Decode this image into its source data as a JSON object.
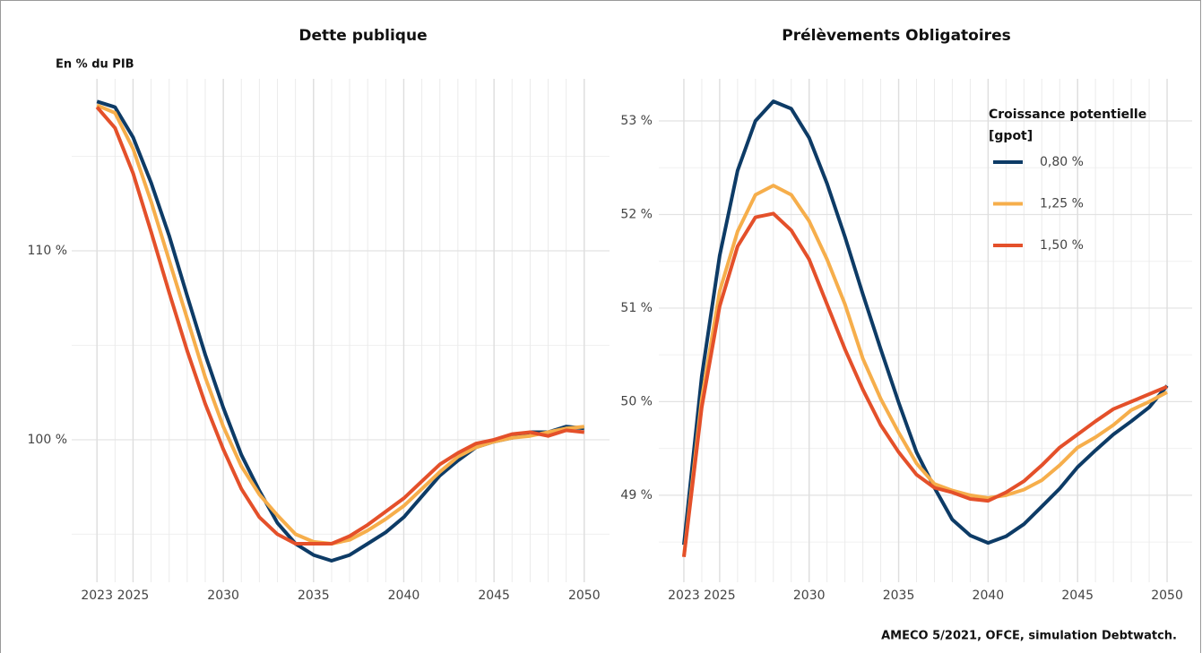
{
  "chart_data": [
    {
      "type": "line",
      "title": "Dette publique",
      "subtitle": "En % du PIB",
      "x": [
        2023,
        2024,
        2025,
        2026,
        2027,
        2028,
        2029,
        2030,
        2031,
        2032,
        2033,
        2034,
        2035,
        2036,
        2037,
        2038,
        2039,
        2040,
        2041,
        2042,
        2043,
        2044,
        2045,
        2046,
        2047,
        2048,
        2049,
        2050
      ],
      "xlim": [
        2021.6,
        2051.4
      ],
      "xticks": [
        2023,
        2025,
        2030,
        2035,
        2040,
        2045,
        2050
      ],
      "ylim": [
        92.46,
        119.1
      ],
      "yticks": [
        {
          "value": 100,
          "label": "100 %"
        },
        {
          "value": 110,
          "label": "110 %"
        }
      ],
      "yminor": [
        95,
        105,
        115
      ],
      "grid": true,
      "legend": false,
      "series": [
        {
          "color": "#0d3b66",
          "values": [
            117.9,
            117.6,
            116.0,
            113.6,
            110.8,
            107.6,
            104.5,
            101.7,
            99.2,
            97.3,
            95.6,
            94.5,
            93.9,
            93.6,
            93.9,
            94.5,
            95.1,
            95.9,
            97.0,
            98.1,
            98.9,
            99.6,
            99.9,
            100.1,
            100.4,
            100.4,
            100.7,
            100.6
          ]
        },
        {
          "color": "#f6ae4b",
          "values": [
            117.7,
            117.3,
            115.4,
            112.6,
            109.5,
            106.4,
            103.3,
            100.7,
            98.6,
            97.1,
            96.0,
            95.0,
            94.6,
            94.5,
            94.7,
            95.2,
            95.8,
            96.5,
            97.4,
            98.3,
            99.1,
            99.6,
            99.9,
            100.1,
            100.2,
            100.4,
            100.6,
            100.7
          ]
        },
        {
          "color": "#e4502a",
          "values": [
            117.6,
            116.5,
            114.1,
            111.0,
            107.8,
            104.7,
            101.9,
            99.5,
            97.4,
            95.9,
            95.0,
            94.5,
            94.5,
            94.5,
            94.9,
            95.5,
            96.2,
            96.9,
            97.8,
            98.7,
            99.3,
            99.8,
            100.0,
            100.3,
            100.4,
            100.2,
            100.5,
            100.4
          ]
        }
      ]
    },
    {
      "type": "line",
      "title": "Prélèvements Obligatoires",
      "x": [
        2023,
        2024,
        2025,
        2026,
        2027,
        2028,
        2029,
        2030,
        2031,
        2032,
        2033,
        2034,
        2035,
        2036,
        2037,
        2038,
        2039,
        2040,
        2041,
        2042,
        2043,
        2044,
        2045,
        2046,
        2047,
        2048,
        2049,
        2050
      ],
      "xlim": [
        2021.6,
        2051.4
      ],
      "xticks": [
        2023,
        2025,
        2030,
        2035,
        2040,
        2045,
        2050
      ],
      "ylim": [
        48.07,
        53.45
      ],
      "yticks": [
        {
          "value": 49,
          "label": "49 %"
        },
        {
          "value": 50,
          "label": "50 %"
        },
        {
          "value": 51,
          "label": "51 %"
        },
        {
          "value": 52,
          "label": "52 %"
        },
        {
          "value": 53,
          "label": "53 %"
        }
      ],
      "yminor": [
        48.5,
        49.5,
        50.5,
        51.5,
        52.5
      ],
      "grid": true,
      "legend": true,
      "legend_position": "top-right",
      "legend_title": [
        "Croissance potentielle",
        "[gpot]"
      ],
      "series": [
        {
          "name": "0,80 %",
          "color": "#0d3b66",
          "values": [
            48.47,
            50.27,
            51.56,
            52.47,
            53.0,
            53.21,
            53.13,
            52.82,
            52.33,
            51.76,
            51.15,
            50.56,
            49.99,
            49.46,
            49.08,
            48.74,
            48.57,
            48.49,
            48.56,
            48.69,
            48.88,
            49.07,
            49.3,
            49.48,
            49.65,
            49.79,
            49.94,
            50.17
          ]
        },
        {
          "name": "1,25 %",
          "color": "#f6ae4b",
          "values": [
            48.35,
            50.03,
            51.18,
            51.82,
            52.21,
            52.31,
            52.21,
            51.93,
            51.52,
            51.04,
            50.46,
            50.03,
            49.67,
            49.34,
            49.12,
            49.05,
            49.0,
            48.97,
            49.0,
            49.06,
            49.16,
            49.32,
            49.51,
            49.62,
            49.75,
            49.91,
            50.0,
            50.1
          ]
        },
        {
          "name": "1,50 %",
          "color": "#e4502a",
          "values": [
            48.34,
            49.94,
            51.02,
            51.66,
            51.97,
            52.01,
            51.83,
            51.52,
            51.04,
            50.56,
            50.13,
            49.75,
            49.46,
            49.22,
            49.08,
            49.03,
            48.96,
            48.94,
            49.03,
            49.15,
            49.32,
            49.51,
            49.65,
            49.79,
            49.92,
            50.0,
            50.08,
            50.16
          ]
        }
      ]
    }
  ],
  "caption": "AMECO 5/2021, OFCE, simulation Debtwatch."
}
